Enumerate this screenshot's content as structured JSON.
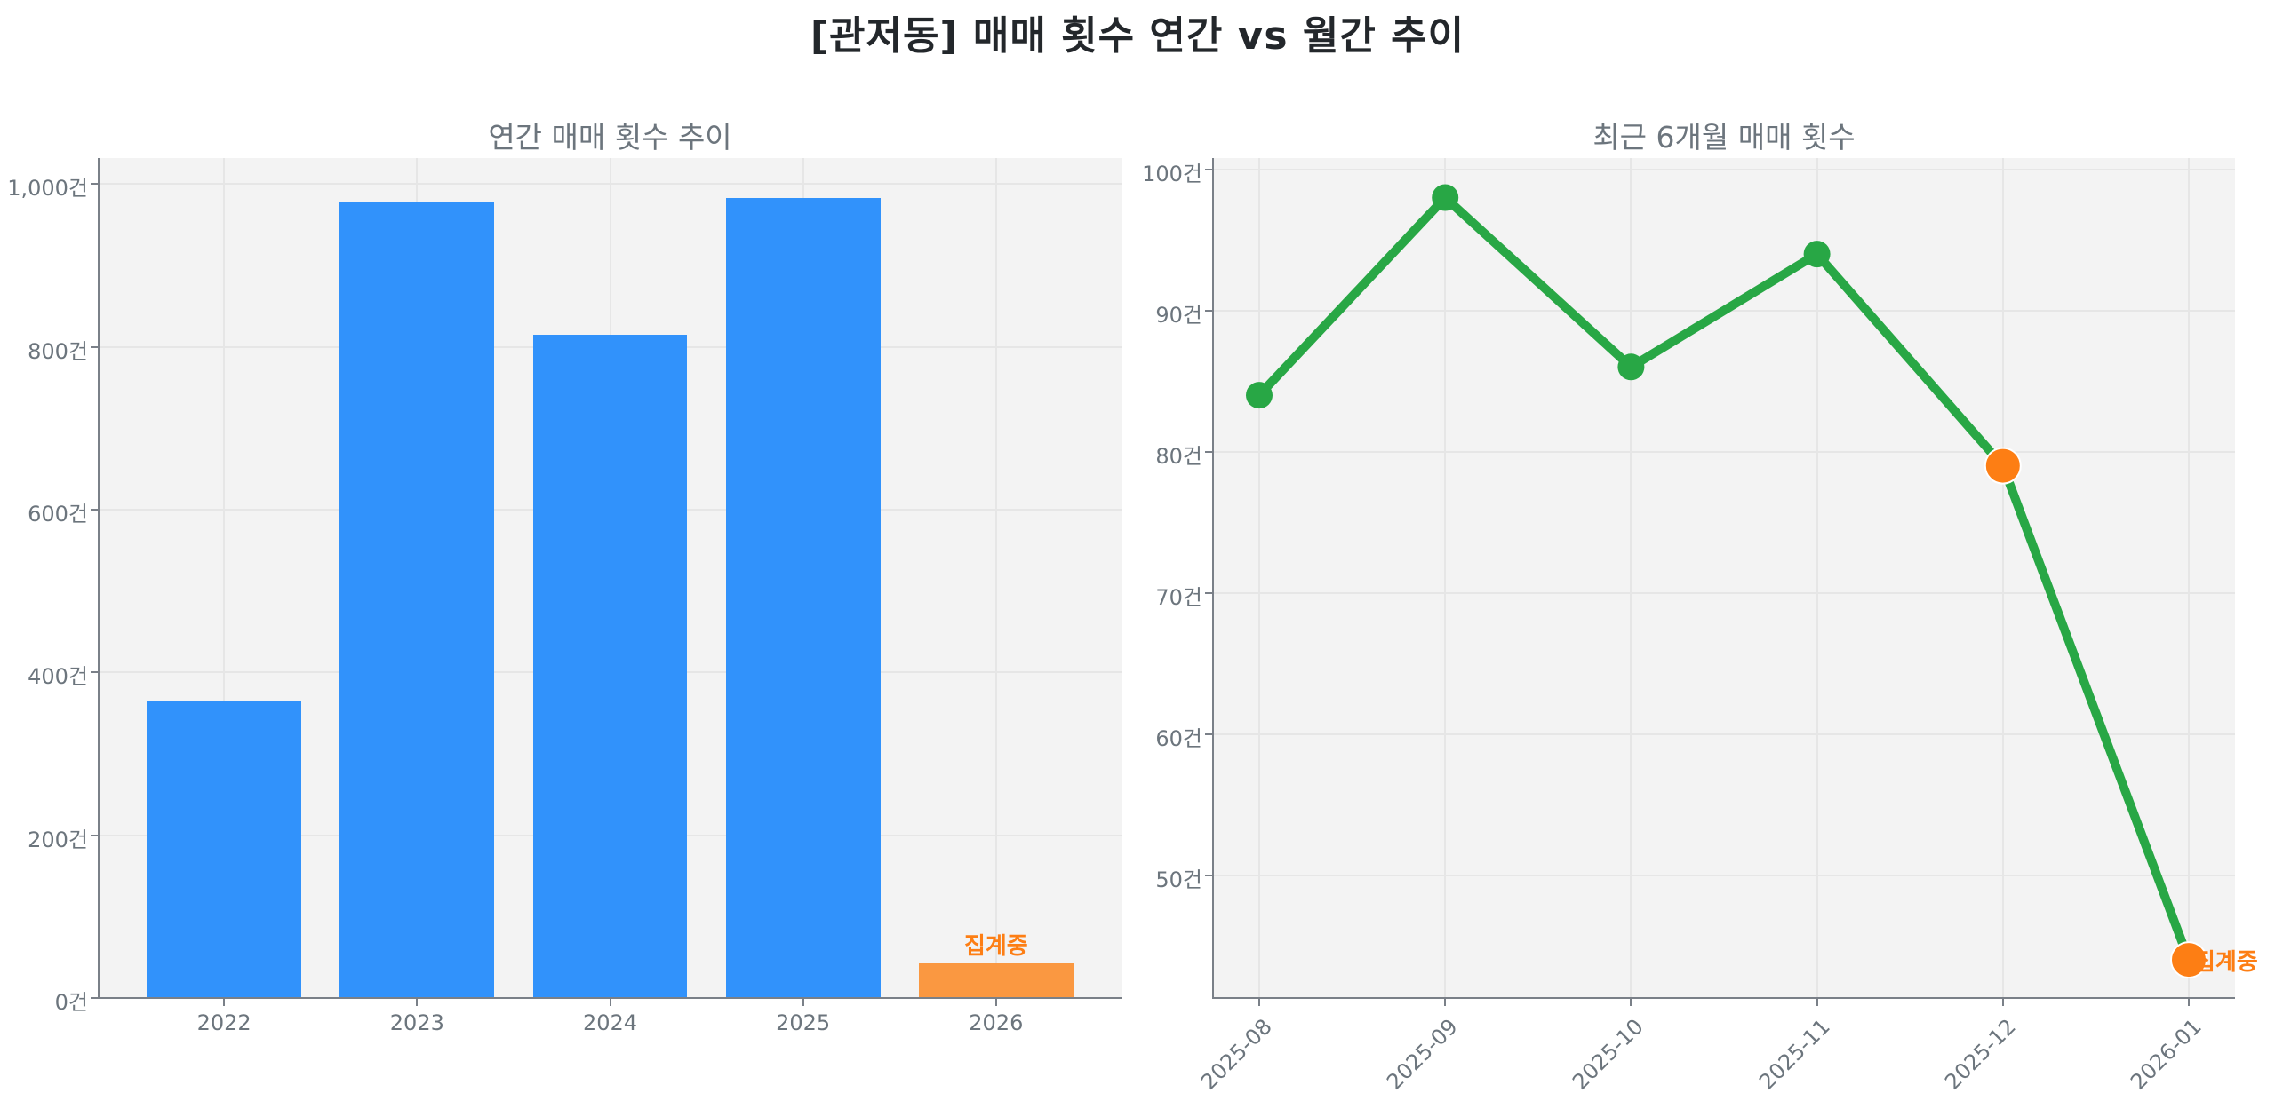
{
  "title": "[관저동] 매매 횟수 연간 vs 월간 추이",
  "colors": {
    "bar": "#3192fb",
    "bar_partial": "#fa9841",
    "line": "#28a745",
    "marker_partial": "#fd7e14",
    "annotation": "#fd7e14",
    "text_muted": "#6c757d",
    "panel_bg": "#f3f3f3"
  },
  "left": {
    "subtitle": "연간 매매 횟수 추이",
    "yticks": [
      "0건",
      "200건",
      "400건",
      "600건",
      "800건",
      "1,000건"
    ],
    "xticks": [
      "2022",
      "2023",
      "2024",
      "2025",
      "2026"
    ],
    "annotation": "집계중"
  },
  "right": {
    "subtitle": "최근 6개월 매매 횟수",
    "yticks": [
      "50건",
      "60건",
      "70건",
      "80건",
      "90건",
      "100건"
    ],
    "xticks": [
      "2025-08",
      "2025-09",
      "2025-10",
      "2025-11",
      "2025-12",
      "2026-01"
    ],
    "annotation": "집계중"
  },
  "chart_data": [
    {
      "type": "bar",
      "title": "연간 매매 횟수 추이",
      "categories": [
        "2022",
        "2023",
        "2024",
        "2025",
        "2026"
      ],
      "values": [
        366,
        978,
        815,
        983,
        43
      ],
      "partial": [
        false,
        false,
        false,
        false,
        true
      ],
      "annotations": [
        {
          "x": "2026",
          "text": "집계중"
        }
      ],
      "xlabel": "",
      "ylabel": "",
      "ylim": [
        0,
        1032
      ],
      "ytick_values": [
        0,
        200,
        400,
        600,
        800,
        1000
      ],
      "ytick_suffix": "건",
      "grid": true,
      "legend": null
    },
    {
      "type": "line",
      "title": "최근 6개월 매매 횟수",
      "x": [
        "2025-08",
        "2025-09",
        "2025-10",
        "2025-11",
        "2025-12",
        "2026-01"
      ],
      "values": [
        84,
        98,
        86,
        94,
        79,
        44
      ],
      "highlighted": [
        false,
        false,
        false,
        false,
        true,
        true
      ],
      "annotations": [
        {
          "x": "2026-01",
          "text": "집계중"
        }
      ],
      "xlabel": "",
      "ylabel": "",
      "ylim": [
        41.3,
        100.8
      ],
      "ytick_values": [
        50,
        60,
        70,
        80,
        90,
        100
      ],
      "ytick_suffix": "건",
      "grid": true,
      "legend": null
    }
  ]
}
